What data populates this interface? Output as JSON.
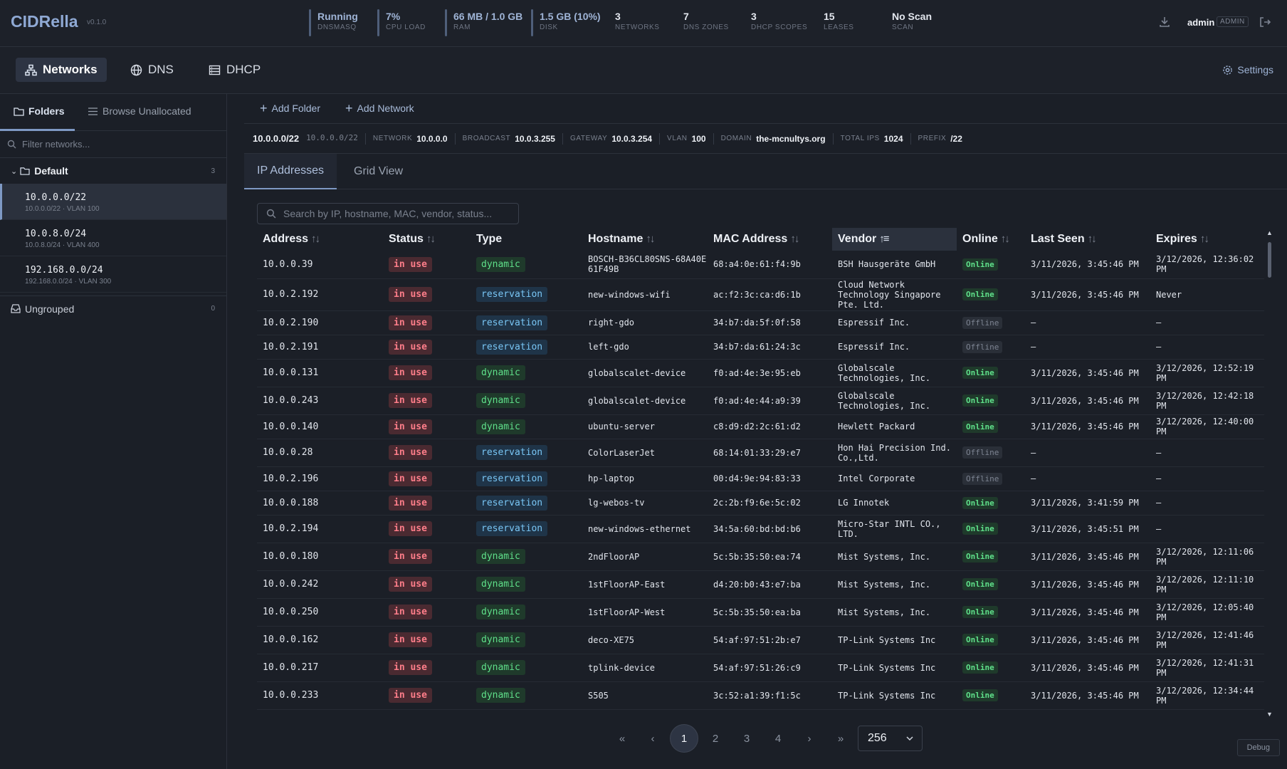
{
  "app": {
    "title": "CIDRella",
    "version": "v0.1.0"
  },
  "header": {
    "stats": [
      {
        "value": "Running",
        "label": "DNSMASQ"
      },
      {
        "value": "7%",
        "label": "CPU LOAD"
      },
      {
        "value": "66 MB / 1.0 GB",
        "label": "RAM"
      },
      {
        "value": "1.5 GB (10%)",
        "label": "DISK"
      },
      {
        "value": "3",
        "label": "NETWORKS"
      },
      {
        "value": "7",
        "label": "DNS ZONES"
      },
      {
        "value": "3",
        "label": "DHCP SCOPES"
      },
      {
        "value": "15",
        "label": "LEASES"
      },
      {
        "value": "No Scan",
        "label": "SCAN"
      }
    ],
    "user": "admin",
    "role": "ADMIN"
  },
  "nav": {
    "tabs": [
      "Networks",
      "DNS",
      "DHCP"
    ],
    "settings": "Settings"
  },
  "sidebar": {
    "tabs": [
      "Folders",
      "Browse Unallocated"
    ],
    "filter_placeholder": "Filter networks...",
    "folder": {
      "name": "Default",
      "count": "3"
    },
    "networks": [
      {
        "cidr": "10.0.0.0/22",
        "sub": "10.0.0.0/22 · VLAN 100"
      },
      {
        "cidr": "10.0.8.0/24",
        "sub": "10.0.8.0/24 · VLAN 400"
      },
      {
        "cidr": "192.168.0.0/24",
        "sub": "192.168.0.0/24 · VLAN 300"
      }
    ],
    "ungrouped": {
      "name": "Ungrouped",
      "count": "0"
    }
  },
  "toolbar": {
    "add_folder": "Add Folder",
    "add_network": "Add Network"
  },
  "network_info": {
    "cidr": "10.0.0.0/22",
    "cidr_mono": "10.0.0.0/22",
    "fields": [
      {
        "k": "NETWORK",
        "v": "10.0.0.0"
      },
      {
        "k": "BROADCAST",
        "v": "10.0.3.255"
      },
      {
        "k": "GATEWAY",
        "v": "10.0.3.254"
      },
      {
        "k": "VLAN",
        "v": "100"
      },
      {
        "k": "DOMAIN",
        "v": "the-mcnultys.org"
      },
      {
        "k": "TOTAL IPS",
        "v": "1024"
      },
      {
        "k": "PREFIX",
        "v": "/22"
      }
    ]
  },
  "view_tabs": [
    "IP Addresses",
    "Grid View"
  ],
  "search": {
    "placeholder": "Search by IP, hostname, MAC, vendor, status..."
  },
  "table": {
    "columns": [
      "Address",
      "Status",
      "Type",
      "Hostname",
      "MAC Address",
      "Vendor",
      "Online",
      "Last Seen",
      "Expires"
    ],
    "rows": [
      {
        "address": "10.0.0.39",
        "status": "in use",
        "type": "dynamic",
        "hostname": "BOSCH-B36CL80SNS-68A40E61F49B",
        "mac": "68:a4:0e:61:f4:9b",
        "vendor": "BSH Hausgeräte GmbH",
        "online": "Online",
        "last_seen": "3/11/2026, 3:45:46 PM",
        "expires": "3/12/2026, 12:36:02 PM"
      },
      {
        "address": "10.0.2.192",
        "status": "in use",
        "type": "reservation",
        "hostname": "new-windows-wifi",
        "mac": "ac:f2:3c:ca:d6:1b",
        "vendor": "Cloud Network Technology Singapore Pte. Ltd.",
        "online": "Online",
        "last_seen": "3/11/2026, 3:45:46 PM",
        "expires": "Never"
      },
      {
        "address": "10.0.2.190",
        "status": "in use",
        "type": "reservation",
        "hostname": "right-gdo",
        "mac": "34:b7:da:5f:0f:58",
        "vendor": "Espressif Inc.",
        "online": "Offline",
        "last_seen": "–",
        "expires": "–"
      },
      {
        "address": "10.0.2.191",
        "status": "in use",
        "type": "reservation",
        "hostname": "left-gdo",
        "mac": "34:b7:da:61:24:3c",
        "vendor": "Espressif Inc.",
        "online": "Offline",
        "last_seen": "–",
        "expires": "–"
      },
      {
        "address": "10.0.0.131",
        "status": "in use",
        "type": "dynamic",
        "hostname": "globalscalet-device",
        "mac": "f0:ad:4e:3e:95:eb",
        "vendor": "Globalscale Technologies, Inc.",
        "online": "Online",
        "last_seen": "3/11/2026, 3:45:46 PM",
        "expires": "3/12/2026, 12:52:19 PM"
      },
      {
        "address": "10.0.0.243",
        "status": "in use",
        "type": "dynamic",
        "hostname": "globalscalet-device",
        "mac": "f0:ad:4e:44:a9:39",
        "vendor": "Globalscale Technologies, Inc.",
        "online": "Online",
        "last_seen": "3/11/2026, 3:45:46 PM",
        "expires": "3/12/2026, 12:42:18 PM"
      },
      {
        "address": "10.0.0.140",
        "status": "in use",
        "type": "dynamic",
        "hostname": "ubuntu-server",
        "mac": "c8:d9:d2:2c:61:d2",
        "vendor": "Hewlett Packard",
        "online": "Online",
        "last_seen": "3/11/2026, 3:45:46 PM",
        "expires": "3/12/2026, 12:40:00 PM"
      },
      {
        "address": "10.0.0.28",
        "status": "in use",
        "type": "reservation",
        "hostname": "ColorLaserJet",
        "mac": "68:14:01:33:29:e7",
        "vendor": "Hon Hai Precision Ind. Co.,Ltd.",
        "online": "Offline",
        "last_seen": "–",
        "expires": "–"
      },
      {
        "address": "10.0.2.196",
        "status": "in use",
        "type": "reservation",
        "hostname": "hp-laptop",
        "mac": "00:d4:9e:94:83:33",
        "vendor": "Intel Corporate",
        "online": "Offline",
        "last_seen": "–",
        "expires": "–"
      },
      {
        "address": "10.0.0.188",
        "status": "in use",
        "type": "reservation",
        "hostname": "lg-webos-tv",
        "mac": "2c:2b:f9:6e:5c:02",
        "vendor": "LG Innotek",
        "online": "Online",
        "last_seen": "3/11/2026, 3:41:59 PM",
        "expires": "–"
      },
      {
        "address": "10.0.2.194",
        "status": "in use",
        "type": "reservation",
        "hostname": "new-windows-ethernet",
        "mac": "34:5a:60:bd:bd:b6",
        "vendor": "Micro-Star INTL CO., LTD.",
        "online": "Online",
        "last_seen": "3/11/2026, 3:45:51 PM",
        "expires": "–"
      },
      {
        "address": "10.0.0.180",
        "status": "in use",
        "type": "dynamic",
        "hostname": "2ndFloorAP",
        "mac": "5c:5b:35:50:ea:74",
        "vendor": "Mist Systems, Inc.",
        "online": "Online",
        "last_seen": "3/11/2026, 3:45:46 PM",
        "expires": "3/12/2026, 12:11:06 PM"
      },
      {
        "address": "10.0.0.242",
        "status": "in use",
        "type": "dynamic",
        "hostname": "1stFloorAP-East",
        "mac": "d4:20:b0:43:e7:ba",
        "vendor": "Mist Systems, Inc.",
        "online": "Online",
        "last_seen": "3/11/2026, 3:45:46 PM",
        "expires": "3/12/2026, 12:11:10 PM"
      },
      {
        "address": "10.0.0.250",
        "status": "in use",
        "type": "dynamic",
        "hostname": "1stFloorAP-West",
        "mac": "5c:5b:35:50:ea:ba",
        "vendor": "Mist Systems, Inc.",
        "online": "Online",
        "last_seen": "3/11/2026, 3:45:46 PM",
        "expires": "3/12/2026, 12:05:40 PM"
      },
      {
        "address": "10.0.0.162",
        "status": "in use",
        "type": "dynamic",
        "hostname": "deco-XE75",
        "mac": "54:af:97:51:2b:e7",
        "vendor": "TP-Link Systems Inc",
        "online": "Online",
        "last_seen": "3/11/2026, 3:45:46 PM",
        "expires": "3/12/2026, 12:41:46 PM"
      },
      {
        "address": "10.0.0.217",
        "status": "in use",
        "type": "dynamic",
        "hostname": "tplink-device",
        "mac": "54:af:97:51:26:c9",
        "vendor": "TP-Link Systems Inc",
        "online": "Online",
        "last_seen": "3/11/2026, 3:45:46 PM",
        "expires": "3/12/2026, 12:41:31 PM"
      },
      {
        "address": "10.0.0.233",
        "status": "in use",
        "type": "dynamic",
        "hostname": "S505",
        "mac": "3c:52:a1:39:f1:5c",
        "vendor": "TP-Link Systems Inc",
        "online": "Online",
        "last_seen": "3/11/2026, 3:45:46 PM",
        "expires": "3/12/2026, 12:34:44 PM"
      }
    ]
  },
  "pagination": {
    "first": "«",
    "prev": "‹",
    "pages": [
      "1",
      "2",
      "3",
      "4"
    ],
    "current": "1",
    "next": "›",
    "last": "»",
    "page_size": "256"
  },
  "debug": "Debug"
}
